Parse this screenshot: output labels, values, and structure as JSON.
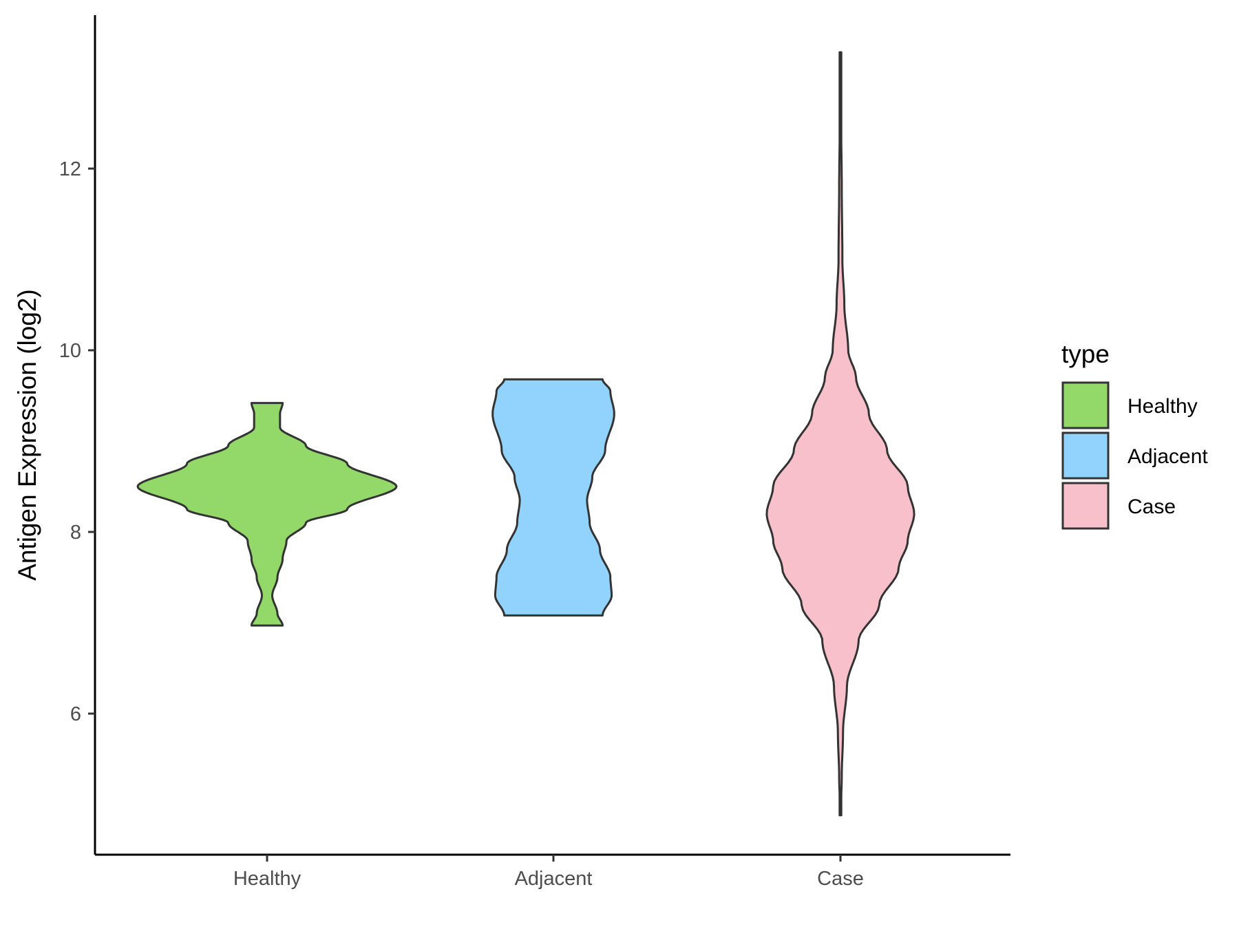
{
  "chart_data": {
    "type": "violin",
    "title": "",
    "xlabel": "",
    "ylabel": "Antigen Expression (log2)",
    "categories": [
      "Healthy",
      "Adjacent",
      "Case"
    ],
    "y_ticks": [
      "6",
      "8",
      "10",
      "12"
    ],
    "y_tick_values": [
      6,
      8,
      10,
      12
    ],
    "ylim": [
      4.5,
      13.9
    ],
    "grid": false,
    "legend": {
      "title": "type",
      "position": "right",
      "entries": [
        "Healthy",
        "Adjacent",
        "Case"
      ]
    },
    "colors": {
      "Healthy": "#93d96a",
      "Adjacent": "#92d3fd",
      "Case": "#f7c0ca",
      "outline": "#333333",
      "axis": "#000000"
    },
    "series": [
      {
        "category": "Healthy",
        "min": 6.97,
        "max": 9.42,
        "density_profile": [
          [
            6.97,
            0.12
          ],
          [
            7.1,
            0.08
          ],
          [
            7.3,
            0.04
          ],
          [
            7.5,
            0.08
          ],
          [
            7.7,
            0.12
          ],
          [
            7.9,
            0.15
          ],
          [
            8.1,
            0.3
          ],
          [
            8.25,
            0.62
          ],
          [
            8.5,
            1.0
          ],
          [
            8.75,
            0.62
          ],
          [
            8.95,
            0.3
          ],
          [
            9.15,
            0.1
          ],
          [
            9.3,
            0.1
          ],
          [
            9.42,
            0.12
          ]
        ]
      },
      {
        "category": "Adjacent",
        "min": 7.08,
        "max": 9.68,
        "density_profile": [
          [
            7.08,
            0.38
          ],
          [
            7.3,
            0.45
          ],
          [
            7.5,
            0.44
          ],
          [
            7.8,
            0.36
          ],
          [
            8.1,
            0.28
          ],
          [
            8.35,
            0.26
          ],
          [
            8.6,
            0.3
          ],
          [
            8.9,
            0.4
          ],
          [
            9.3,
            0.47
          ],
          [
            9.55,
            0.44
          ],
          [
            9.68,
            0.38
          ]
        ]
      },
      {
        "category": "Case",
        "min": 4.88,
        "max": 13.28,
        "density_profile": [
          [
            4.88,
            0.0
          ],
          [
            5.3,
            0.01
          ],
          [
            5.8,
            0.02
          ],
          [
            6.3,
            0.05
          ],
          [
            6.8,
            0.14
          ],
          [
            7.2,
            0.3
          ],
          [
            7.6,
            0.45
          ],
          [
            7.9,
            0.52
          ],
          [
            8.2,
            0.57
          ],
          [
            8.5,
            0.52
          ],
          [
            8.9,
            0.36
          ],
          [
            9.3,
            0.22
          ],
          [
            9.7,
            0.12
          ],
          [
            10.0,
            0.06
          ],
          [
            10.5,
            0.03
          ],
          [
            11.0,
            0.015
          ],
          [
            11.8,
            0.01
          ],
          [
            12.5,
            0.005
          ],
          [
            13.28,
            0.0
          ]
        ]
      }
    ]
  }
}
